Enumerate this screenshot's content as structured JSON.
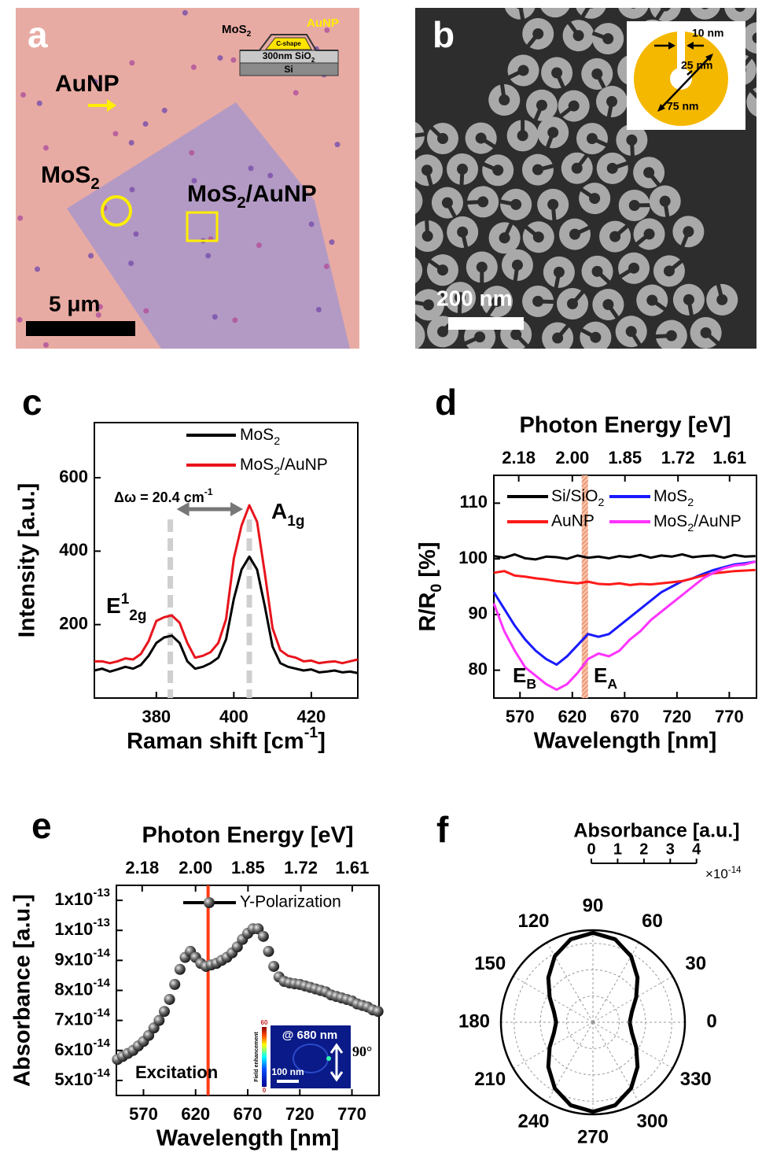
{
  "panel_a": {
    "label": "a",
    "particle_label": "AuNP",
    "mos2_label": [
      "MoS",
      {
        "sub": "2"
      }
    ],
    "hybrid_label": [
      "MoS",
      {
        "sub": "2"
      },
      "/AuNP"
    ],
    "scale_bar": "5 μm",
    "inset": {
      "mos2": [
        "MoS",
        {
          "sub": "2"
        }
      ],
      "aunp": "AuNP",
      "shape": "C-shape",
      "oxide": [
        "300nm SiO",
        {
          "sub": "2"
        }
      ],
      "substrate": "Si"
    }
  },
  "panel_b": {
    "label": "b",
    "scale_bar": "200 nm",
    "inset": {
      "gap": "10 nm",
      "inner": "25 nm",
      "outer": "75 nm"
    }
  },
  "chart_data": [
    {
      "label": "c",
      "type": "line",
      "xlabel": [
        "Raman shift [cm",
        {
          "sup": "-1"
        },
        "]"
      ],
      "ylabel": "Intensity [a.u.]",
      "x": [
        364,
        366,
        368,
        370,
        372,
        374,
        376,
        378,
        380,
        382,
        384,
        386,
        388,
        390,
        392,
        394,
        396,
        398,
        400,
        402,
        404,
        406,
        408,
        410,
        412,
        414,
        416,
        418,
        420,
        422,
        424,
        426,
        428,
        430,
        432
      ],
      "series": [
        {
          "name": [
            "MoS",
            {
              "sub": "2"
            }
          ],
          "color": "#000000",
          "values": [
            75,
            80,
            72,
            78,
            85,
            80,
            90,
            115,
            150,
            165,
            170,
            150,
            100,
            80,
            85,
            95,
            110,
            160,
            270,
            350,
            385,
            350,
            250,
            140,
            95,
            85,
            80,
            75,
            78,
            70,
            72,
            75,
            70,
            72,
            68
          ]
        },
        {
          "name": [
            "MoS",
            {
              "sub": "2"
            },
            "/AuNP"
          ],
          "color": "#e8141c",
          "values": [
            100,
            100,
            95,
            100,
            108,
            105,
            120,
            155,
            210,
            220,
            225,
            205,
            150,
            110,
            115,
            125,
            150,
            215,
            380,
            470,
            525,
            480,
            340,
            190,
            130,
            115,
            110,
            100,
            102,
            95,
            98,
            100,
            95,
            100,
            105
          ]
        }
      ],
      "xlim": [
        364,
        432
      ],
      "ylim": [
        0,
        750
      ],
      "xticks": [
        380,
        400,
        420
      ],
      "yticks": [
        200,
        400,
        600
      ],
      "legend": "upper right",
      "peak_lines": [
        383.6,
        404
      ],
      "shift_label": [
        "Δω = 20.4 cm",
        {
          "sup": "-1"
        }
      ],
      "peak_labels": [
        [
          "E",
          {
            "sup": "1"
          },
          {
            "sub": "2g"
          }
        ],
        [
          "A",
          {
            "sub": "1g"
          }
        ]
      ]
    },
    {
      "label": "d",
      "type": "line",
      "xlabel": "Wavelength [nm]",
      "ylabel": [
        "R/R",
        {
          "sub": "0"
        },
        " [%]"
      ],
      "x2label": "Photon Energy [eV]",
      "x": [
        545,
        555,
        565,
        575,
        585,
        595,
        605,
        615,
        625,
        635,
        645,
        655,
        665,
        675,
        685,
        695,
        705,
        715,
        725,
        735,
        745,
        755,
        765,
        775,
        785,
        795
      ],
      "series": [
        {
          "name": [
            "Si/SiO",
            {
              "sub": "2"
            }
          ],
          "color": "#000000",
          "values": [
            100.5,
            100.2,
            100.8,
            100.1,
            99.9,
            100.4,
            100.3,
            100,
            100.6,
            100.2,
            100.4,
            100.1,
            100.5,
            100.3,
            100.7,
            100.2,
            100.6,
            100.4,
            100.8,
            100.3,
            100.5,
            100.6,
            100.2,
            100.7,
            100.4,
            100.5
          ]
        },
        {
          "name": [
            "MoS",
            {
              "sub": "2"
            }
          ],
          "color": "#1a1aff",
          "values": [
            94,
            91,
            88,
            85.5,
            83.5,
            82,
            81,
            82.5,
            84.5,
            86.5,
            86,
            86.5,
            88,
            89.5,
            91,
            92.5,
            94,
            95,
            96,
            96.5,
            97.3,
            98,
            98.5,
            99,
            99.2,
            99.5
          ]
        },
        {
          "name": "AuNP",
          "color": "#ff1a1a",
          "values": [
            97.5,
            97.8,
            97,
            96.8,
            96.5,
            96.3,
            96,
            95.8,
            95.6,
            95.9,
            95.5,
            95.4,
            95.6,
            95.3,
            95.5,
            95.4,
            95.6,
            95.8,
            96,
            96.5,
            97,
            97.4,
            97.6,
            97.8,
            97.9,
            98
          ]
        },
        {
          "name": [
            "MoS",
            {
              "sub": "2"
            },
            "/AuNP"
          ],
          "color": "#ff33ff",
          "values": [
            92,
            87,
            83.5,
            80.5,
            79,
            77.5,
            76.5,
            77.5,
            79.5,
            82,
            83,
            82.5,
            83.5,
            85.5,
            87,
            89,
            90.5,
            92,
            93.5,
            95,
            96.5,
            97.5,
            98.3,
            98.8,
            99,
            99.5
          ]
        }
      ],
      "xlim": [
        545,
        796
      ],
      "ylim": [
        75,
        115
      ],
      "xticks": [
        570,
        620,
        670,
        720,
        770
      ],
      "yticks": [
        80,
        90,
        100,
        110
      ],
      "x2lim": [
        2.275,
        1.558
      ],
      "x2scale": "reciprocal",
      "x2ticks": [
        2.18,
        {
          "value": 2,
          "label": "2.00"
        },
        1.85,
        1.72,
        1.61
      ],
      "excitation_nm": 632,
      "legend": "upper center",
      "peak_labels": [
        [
          "E",
          {
            "sub": "B"
          }
        ],
        [
          "E",
          {
            "sub": "A"
          }
        ]
      ]
    },
    {
      "label": "e",
      "type": "line",
      "markers": true,
      "xlabel": "Wavelength [nm]",
      "ylabel": "Absorbance [a.u.]",
      "x2label": "Photon Energy [eV]",
      "x": [
        545,
        550,
        555,
        560,
        565,
        570,
        575,
        580,
        585,
        590,
        595,
        600,
        605,
        610,
        615,
        620,
        625,
        630,
        635,
        640,
        645,
        650,
        655,
        660,
        665,
        670,
        675,
        680,
        685,
        690,
        695,
        700,
        705,
        710,
        715,
        720,
        725,
        730,
        735,
        740,
        745,
        750,
        755,
        760,
        765,
        770,
        775,
        780,
        785,
        790,
        795
      ],
      "series": [
        {
          "name": "Y-Polarization",
          "color": "#000000",
          "values": [
            5.7e-14,
            5.8e-14,
            5.9e-14,
            6e-14,
            6.15e-14,
            6.3e-14,
            6.5e-14,
            6.75e-14,
            7e-14,
            7.3e-14,
            7.7e-14,
            8.2e-14,
            8.7e-14,
            9.1e-14,
            9.3e-14,
            9.1e-14,
            8.9e-14,
            8.8e-14,
            8.85e-14,
            8.9e-14,
            9e-14,
            9.1e-14,
            9.25e-14,
            9.45e-14,
            9.7e-14,
            9.9e-14,
            1.005e-13,
            1.005e-13,
            9.8e-14,
            9.3e-14,
            8.8e-14,
            8.45e-14,
            8.3e-14,
            8.25e-14,
            8.22e-14,
            8.2e-14,
            8.15e-14,
            8.1e-14,
            8.05e-14,
            8e-14,
            7.95e-14,
            7.85e-14,
            7.8e-14,
            7.75e-14,
            7.7e-14,
            7.65e-14,
            7.55e-14,
            7.5e-14,
            7.45e-14,
            7.35e-14,
            7.3e-14
          ]
        }
      ],
      "xlim": [
        544,
        796
      ],
      "ylim": [
        4.5e-14,
        1.15e-13
      ],
      "xticks": [
        570,
        620,
        670,
        720,
        770
      ],
      "yticks": [
        {
          "value": 5e-14,
          "label": [
            "5x10",
            {
              "sup": "-14"
            }
          ]
        },
        {
          "value": 6e-14,
          "label": [
            "6x10",
            {
              "sup": "-14"
            }
          ]
        },
        {
          "value": 7e-14,
          "label": [
            "7x10",
            {
              "sup": "-14"
            }
          ]
        },
        {
          "value": 8e-14,
          "label": [
            "8x10",
            {
              "sup": "-14"
            }
          ]
        },
        {
          "value": 9e-14,
          "label": [
            "9x10",
            {
              "sup": "-14"
            }
          ]
        },
        {
          "value": 1e-13,
          "label": [
            "1x10",
            {
              "sup": "-13"
            }
          ]
        },
        {
          "value": 1.1e-13,
          "label": [
            "1x10",
            {
              "sup": "-13"
            }
          ]
        }
      ],
      "x2lim": [
        2.279,
        1.558
      ],
      "x2scale": "reciprocal",
      "x2ticks": [
        2.18,
        {
          "value": 2,
          "label": "2.00"
        },
        1.85,
        1.72,
        1.61
      ],
      "excitation_nm": 632,
      "excitation_label": "Excitation",
      "legend": "upper right",
      "inset": {
        "wavelength": "@ 680 nm",
        "scale_bar": "100 nm",
        "angle": "90°",
        "colorbar_label": "Field enhancement",
        "colorbar_max": "60",
        "colorbar_min": "0"
      }
    },
    {
      "label": "f",
      "type": "polar",
      "title": "Absorbance [a.u.]",
      "color": "#000000",
      "grid": true,
      "theta": [
        0,
        15,
        30,
        45,
        60,
        75,
        90,
        105,
        120,
        135,
        150,
        165,
        180,
        195,
        210,
        225,
        240,
        255,
        270,
        285,
        300,
        315,
        330,
        345,
        360
      ],
      "values": [
        1.4e-14,
        1.534e-14,
        1.9e-14,
        2.4e-14,
        2.9e-14,
        3.266e-14,
        3.4e-14,
        3.266e-14,
        2.9e-14,
        2.4e-14,
        1.9e-14,
        1.534e-14,
        1.4e-14,
        1.534e-14,
        1.9e-14,
        2.4e-14,
        2.9e-14,
        3.266e-14,
        3.4e-14,
        3.266e-14,
        2.9e-14,
        2.4e-14,
        1.9e-14,
        1.534e-14,
        1.4e-14
      ],
      "rlim": [
        0,
        3.5e-14
      ],
      "rticks": [
        0,
        {
          "value": 1e-14,
          "label": "1"
        },
        {
          "value": 2e-14,
          "label": "2"
        },
        {
          "value": 3e-14,
          "label": "3"
        },
        {
          "value": 4e-14,
          "label": "4"
        }
      ],
      "r_multiplier": [
        "×10",
        {
          "sup": "-14"
        }
      ],
      "thetaticks": [
        0,
        30,
        60,
        90,
        120,
        150,
        180,
        210,
        240,
        270,
        300,
        330
      ]
    }
  ]
}
